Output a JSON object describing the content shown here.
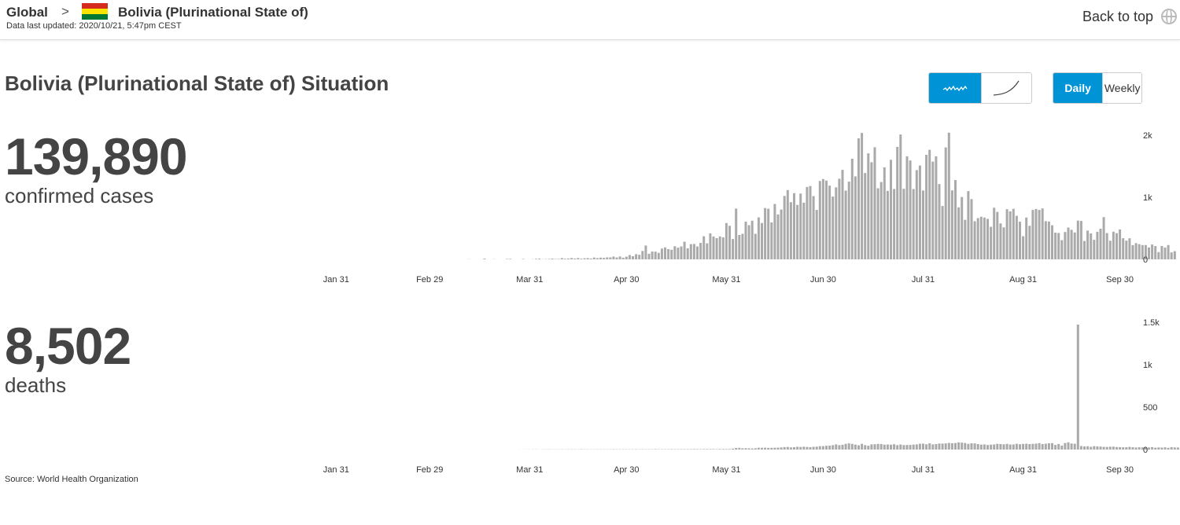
{
  "header": {
    "global_label": "Global",
    "chevron": ">",
    "country": "Bolivia (Plurinational State of)",
    "updated": "Data last updated: 2020/10/21, 5:47pm CEST",
    "back_to_top": "Back to top",
    "flag_colors": [
      "#d52b1e",
      "#f9e300",
      "#007934"
    ]
  },
  "title": "Bolivia (Plurinational State of) Situation",
  "controls": {
    "chart_mode": [
      "daily-squiggle-icon",
      "cumulative-curve-icon"
    ],
    "active_mode": 0,
    "period": [
      "Daily",
      "Weekly"
    ],
    "active_period": 0,
    "accent": "#0093d5"
  },
  "stats": {
    "cases_value": "139,890",
    "cases_label": "confirmed cases",
    "deaths_value": "8,502",
    "deaths_label": "deaths"
  },
  "source": "Source:  World Health Organization",
  "chart_data": [
    {
      "type": "bar",
      "series_id": "cases",
      "x_start": "2020-01-03",
      "x_tick_labels": [
        "Jan 31",
        "Feb 29",
        "Mar 31",
        "Apr 30",
        "May 31",
        "Jun 30",
        "Jul 31",
        "Aug 31",
        "Sep 30"
      ],
      "y_tick_labels": [
        "0",
        "1k",
        "2k"
      ],
      "ylim": [
        0,
        2000
      ],
      "bar_color": "#aaaaaa",
      "values": [
        0,
        0,
        0,
        0,
        0,
        0,
        0,
        0,
        0,
        0,
        0,
        0,
        0,
        0,
        0,
        0,
        0,
        0,
        0,
        0,
        0,
        0,
        0,
        0,
        0,
        0,
        0,
        0,
        0,
        0,
        0,
        0,
        0,
        0,
        0,
        0,
        0,
        0,
        0,
        0,
        0,
        0,
        0,
        0,
        0,
        0,
        0,
        0,
        0,
        0,
        0,
        0,
        0,
        0,
        0,
        0,
        0,
        0,
        0,
        0,
        0,
        0,
        0,
        0,
        0,
        0,
        0,
        0,
        0,
        3,
        0,
        0,
        0,
        0,
        12,
        0,
        0,
        3,
        0,
        0,
        0,
        6,
        8,
        0,
        0,
        0,
        6,
        0,
        0,
        3,
        9,
        12,
        2,
        5,
        6,
        13,
        6,
        7,
        20,
        10,
        14,
        22,
        14,
        22,
        11,
        18,
        20,
        14,
        29,
        20,
        28,
        24,
        32,
        32,
        45,
        30,
        47,
        26,
        43,
        70,
        51,
        84,
        73,
        135,
        223,
        90,
        125,
        124,
        105,
        173,
        192,
        165,
        155,
        211,
        189,
        208,
        285,
        179,
        246,
        248,
        208,
        264,
        372,
        258,
        419,
        368,
        342,
        370,
        355,
        585,
        541,
        328,
        818,
        392,
        412,
        607,
        551,
        623,
        412,
        676,
        586,
        826,
        815,
        595,
        892,
        724,
        802,
        1022,
        1117,
        920,
        1066,
        877,
        1059,
        913,
        1166,
        1181,
        1019,
        796,
        1262,
        1294,
        1268,
        1187,
        1011,
        1160,
        1299,
        1442,
        1108,
        1252,
        1620,
        1337,
        1949,
        2037,
        1390,
        1708,
        1565,
        1806,
        1144,
        1245,
        1482,
        1103,
        1604,
        1133,
        1811,
        2012,
        1137,
        1660,
        1593,
        1133,
        1438,
        1512,
        1109,
        1684,
        1764,
        1575,
        1659,
        1213,
        859,
        1803,
        2040,
        1111,
        1277,
        838,
        1004,
        637,
        1100,
        971,
        614,
        664,
        686,
        674,
        652,
        524,
        832,
        765,
        579,
        515,
        808,
        774,
        814,
        701,
        606,
        372,
        674,
        540,
        796,
        811,
        796,
        820,
        615,
        609,
        550,
        430,
        425,
        309,
        441,
        513,
        476,
        433,
        624,
        619,
        296,
        463,
        418,
        315,
        444,
        494,
        680,
        423,
        300,
        446,
        422,
        481,
        341,
        301,
        339,
        229,
        262,
        244,
        230,
        230,
        191,
        239,
        214,
        118,
        215,
        190,
        230,
        113,
        132
      ]
    },
    {
      "type": "bar",
      "series_id": "deaths",
      "x_start": "2020-01-03",
      "x_tick_labels": [
        "Jan 31",
        "Feb 29",
        "Mar 31",
        "Apr 30",
        "May 31",
        "Jun 30",
        "Jul 31",
        "Aug 31",
        "Sep 30"
      ],
      "y_tick_labels": [
        "0",
        "500",
        "1k",
        "1.5k"
      ],
      "ylim": [
        0,
        1600
      ],
      "bar_color": "#aaaaaa",
      "values": [
        0,
        0,
        0,
        0,
        0,
        0,
        0,
        0,
        0,
        0,
        0,
        0,
        0,
        0,
        0,
        0,
        0,
        0,
        0,
        0,
        0,
        0,
        0,
        0,
        0,
        0,
        0,
        0,
        0,
        0,
        0,
        0,
        0,
        0,
        0,
        0,
        0,
        0,
        0,
        0,
        0,
        0,
        0,
        0,
        0,
        0,
        0,
        0,
        0,
        0,
        0,
        0,
        0,
        0,
        0,
        0,
        0,
        0,
        0,
        0,
        0,
        0,
        0,
        0,
        0,
        0,
        0,
        0,
        0,
        0,
        0,
        0,
        0,
        0,
        0,
        0,
        0,
        0,
        0,
        0,
        0,
        0,
        0,
        0,
        0,
        1,
        1,
        1,
        1,
        2,
        2,
        1,
        2,
        2,
        3,
        2,
        2,
        2,
        3,
        2,
        3,
        3,
        3,
        2,
        4,
        3,
        3,
        2,
        2,
        3,
        3,
        3,
        3,
        3,
        4,
        3,
        3,
        4,
        3,
        3,
        3,
        4,
        3,
        4,
        3,
        4,
        4,
        5,
        4,
        4,
        4,
        4,
        5,
        4,
        4,
        5,
        5,
        5,
        5,
        6,
        5,
        5,
        6,
        6,
        6,
        6,
        5,
        7,
        7,
        6,
        7,
        12,
        20,
        22,
        16,
        17,
        15,
        14,
        17,
        23,
        22,
        24,
        21,
        22,
        23,
        25,
        27,
        31,
        33,
        27,
        30,
        35,
        33,
        36,
        33,
        31,
        35,
        37,
        42,
        43,
        47,
        49,
        55,
        65,
        55,
        60,
        72,
        78,
        71,
        62,
        53,
        72,
        55,
        48,
        65,
        67,
        71,
        70,
        62,
        63,
        61,
        67,
        55,
        63,
        56,
        57,
        58,
        62,
        65,
        73,
        74,
        66,
        79,
        65,
        69,
        76,
        75,
        78,
        83,
        80,
        82,
        90,
        87,
        82,
        71,
        79,
        78,
        69,
        62,
        64,
        57,
        62,
        64,
        72,
        69,
        66,
        71,
        63,
        64,
        72,
        67,
        71,
        73,
        69,
        72,
        75,
        81,
        69,
        73,
        79,
        81,
        58,
        70,
        49,
        82,
        91,
        76,
        73,
        1570,
        44,
        40,
        41,
        35,
        42,
        40,
        38,
        34,
        33,
        36,
        37,
        32,
        31,
        28,
        30,
        34,
        29,
        26,
        29,
        27,
        28,
        26,
        31,
        24,
        27,
        25,
        28,
        22,
        30,
        27,
        26,
        23,
        24,
        20,
        21,
        19,
        22,
        27,
        18,
        21,
        19,
        24,
        20,
        26,
        16,
        21,
        25,
        22,
        17,
        19,
        16,
        23
      ]
    }
  ]
}
